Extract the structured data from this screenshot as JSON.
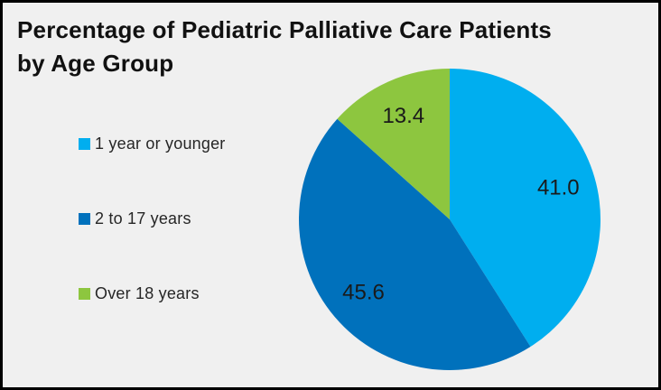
{
  "title": {
    "full": "Percentage of Pediatric Palliative Care Patients by Age Group",
    "line1": "Percentage of Pediatric Palliative Care Patients",
    "line2": "by Age Group"
  },
  "colors": {
    "background": "#F0F0F0",
    "border": "#000000",
    "title_text": "#111111",
    "legend_text": "#262626",
    "data_label_text": "#1A1A1A"
  },
  "chart_data": {
    "type": "pie",
    "title": "Percentage of Pediatric Palliative Care Patients by Age Group",
    "categories": [
      "1 year or younger",
      "2 to 17 years",
      "Over 18 years"
    ],
    "values": [
      41.0,
      45.6,
      13.4
    ],
    "labels": [
      "41.0",
      "45.6",
      "13.4"
    ],
    "colors": [
      "#00AEEF",
      "#0071BC",
      "#8DC63F"
    ],
    "legend_position": "left",
    "start_angle_deg": 0,
    "direction": "clockwise",
    "data_labels_shown": true,
    "unit": "percent"
  }
}
